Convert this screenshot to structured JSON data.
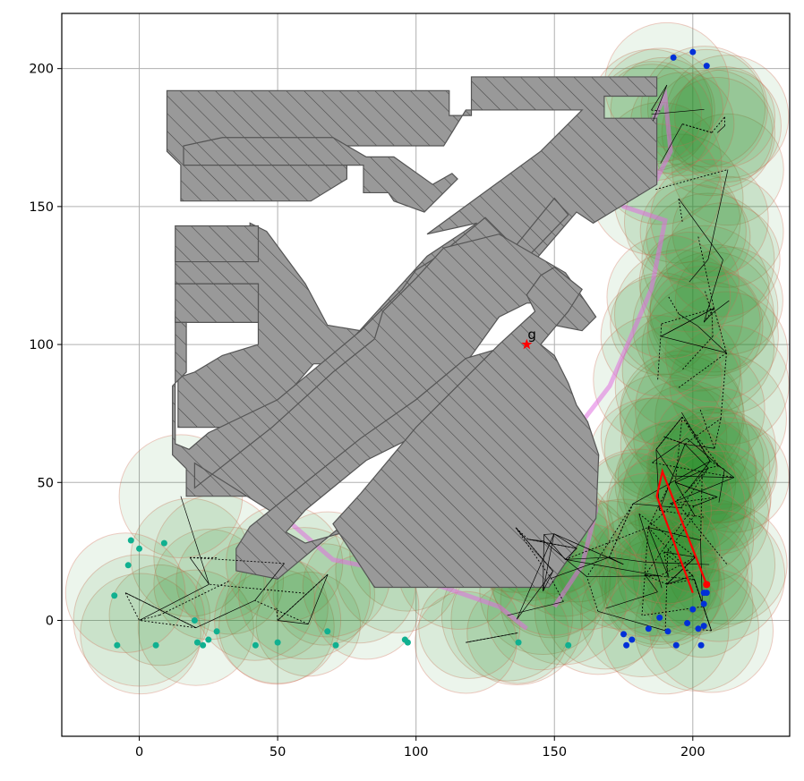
{
  "chart_data": {
    "type": "scatter",
    "title": "",
    "xlabel": "",
    "ylabel": "",
    "xlim": [
      -28,
      235
    ],
    "ylim": [
      -42,
      220
    ],
    "x_ticks": [
      0,
      50,
      100,
      150,
      200
    ],
    "y_ticks": [
      0,
      50,
      100,
      150,
      200
    ],
    "x_tick_labels": [
      "0",
      "50",
      "100",
      "150",
      "200"
    ],
    "y_tick_labels": [
      "0",
      "50",
      "100",
      "150",
      "200"
    ],
    "grid": true,
    "legend": "none",
    "colors": {
      "obstacle_fill": "#999999",
      "obstacle_edge": "#555555",
      "fov_fill": "#2e8b2e",
      "fov_edge": "#d4705a",
      "magenta_fill": "#e070e0",
      "goal": "#ff0000",
      "path": "#ff0000",
      "edge_line": "#000000"
    },
    "goal": {
      "x": 140,
      "y": 100,
      "label": "g"
    },
    "obstacles": [
      {
        "name": "top-bar",
        "points": [
          [
            10,
            192
          ],
          [
            112,
            192
          ],
          [
            112,
            183
          ],
          [
            120,
            183
          ],
          [
            120,
            197
          ],
          [
            187,
            197
          ],
          [
            187,
            190
          ],
          [
            168,
            190
          ],
          [
            168,
            182
          ],
          [
            187,
            182
          ],
          [
            187,
            158
          ],
          [
            164,
            144
          ],
          [
            158,
            148
          ],
          [
            110,
            92
          ],
          [
            104,
            95
          ],
          [
            98,
            89
          ],
          [
            150,
            153
          ],
          [
            155,
            147
          ],
          [
            103,
            93
          ],
          [
            90,
            88
          ],
          [
            80,
            105
          ],
          [
            68,
            107
          ],
          [
            60,
            122
          ],
          [
            46,
            141
          ],
          [
            40,
            144
          ],
          [
            40,
            134
          ],
          [
            13,
            134
          ],
          [
            13,
            122
          ],
          [
            43,
            122
          ],
          [
            43,
            112
          ],
          [
            13,
            112
          ],
          [
            13,
            108
          ],
          [
            43,
            108
          ],
          [
            43,
            100
          ],
          [
            30,
            96
          ],
          [
            20,
            90
          ],
          [
            14,
            88
          ],
          [
            14,
            70
          ],
          [
            43,
            70
          ],
          [
            63,
            93
          ],
          [
            70,
            93
          ],
          [
            76,
            101
          ],
          [
            104,
            132
          ],
          [
            122,
            144
          ],
          [
            104,
            140
          ],
          [
            145,
            170
          ],
          [
            150,
            175
          ],
          [
            160,
            185
          ],
          [
            118,
            185
          ],
          [
            110,
            172
          ],
          [
            75,
            172
          ],
          [
            75,
            160
          ],
          [
            62,
            152
          ],
          [
            15,
            152
          ],
          [
            15,
            165
          ],
          [
            10,
            170
          ]
        ]
      },
      {
        "name": "upper-block",
        "points": [
          [
            16,
            165
          ],
          [
            81,
            165
          ],
          [
            81,
            155
          ],
          [
            90,
            155
          ],
          [
            92,
            152
          ],
          [
            103,
            148
          ],
          [
            115,
            160
          ],
          [
            113,
            162
          ],
          [
            106,
            158
          ],
          [
            92,
            168
          ],
          [
            82,
            168
          ],
          [
            70,
            175
          ],
          [
            30,
            175
          ],
          [
            16,
            172
          ]
        ]
      },
      {
        "name": "left-bar",
        "points": [
          [
            13,
            143
          ],
          [
            13,
            130
          ],
          [
            43,
            130
          ],
          [
            43,
            143
          ]
        ]
      },
      {
        "name": "left-bar-2",
        "points": [
          [
            13,
            122
          ],
          [
            13,
            108
          ],
          [
            43,
            108
          ],
          [
            43,
            122
          ]
        ]
      },
      {
        "name": "left-diagonal",
        "points": [
          [
            13,
            108
          ],
          [
            17,
            108
          ],
          [
            17,
            90
          ],
          [
            12,
            85
          ],
          [
            12,
            60
          ],
          [
            17,
            55
          ],
          [
            17,
            45
          ],
          [
            60,
            45
          ],
          [
            90,
            78
          ],
          [
            100,
            90
          ],
          [
            108,
            88
          ],
          [
            130,
            110
          ],
          [
            143,
            128
          ],
          [
            125,
            146
          ],
          [
            108,
            132
          ],
          [
            100,
            127
          ],
          [
            95,
            120
          ],
          [
            80,
            105
          ],
          [
            50,
            80
          ],
          [
            25,
            68
          ],
          [
            18,
            62
          ],
          [
            13,
            64
          ]
        ]
      },
      {
        "name": "center-diagonal",
        "points": [
          [
            20,
            57
          ],
          [
            50,
            38
          ],
          [
            95,
            72
          ],
          [
            120,
            96
          ],
          [
            130,
            110
          ],
          [
            140,
            115
          ],
          [
            152,
            115
          ],
          [
            145,
            108
          ],
          [
            160,
            105
          ],
          [
            165,
            110
          ],
          [
            154,
            126
          ],
          [
            130,
            140
          ],
          [
            110,
            135
          ],
          [
            100,
            124
          ],
          [
            88,
            112
          ],
          [
            85,
            102
          ],
          [
            70,
            90
          ],
          [
            48,
            70
          ],
          [
            20,
            48
          ]
        ]
      },
      {
        "name": "middle-diagonal",
        "points": [
          [
            35,
            18
          ],
          [
            50,
            15
          ],
          [
            80,
            40
          ],
          [
            128,
            75
          ],
          [
            128,
            70
          ],
          [
            105,
            52
          ],
          [
            85,
            35
          ],
          [
            60,
            28
          ],
          [
            53,
            32
          ],
          [
            60,
            40
          ],
          [
            82,
            58
          ],
          [
            98,
            66
          ],
          [
            108,
            70
          ],
          [
            130,
            90
          ],
          [
            140,
            92
          ],
          [
            135,
            100
          ],
          [
            118,
            95
          ],
          [
            100,
            80
          ],
          [
            80,
            66
          ],
          [
            55,
            46
          ],
          [
            40,
            34
          ],
          [
            35,
            26
          ]
        ]
      },
      {
        "name": "right-diagonal",
        "points": [
          [
            85,
            12
          ],
          [
            148,
            12
          ],
          [
            165,
            37
          ],
          [
            166,
            60
          ],
          [
            162,
            72
          ],
          [
            158,
            78
          ],
          [
            155,
            86
          ],
          [
            150,
            96
          ],
          [
            145,
            100
          ],
          [
            155,
            112
          ],
          [
            160,
            120
          ],
          [
            150,
            128
          ],
          [
            145,
            125
          ],
          [
            140,
            118
          ],
          [
            143,
            112
          ],
          [
            130,
            100
          ],
          [
            126,
            96
          ],
          [
            120,
            90
          ],
          [
            112,
            82
          ],
          [
            100,
            70
          ],
          [
            90,
            58
          ],
          [
            80,
            46
          ],
          [
            70,
            35
          ]
        ]
      }
    ]
  }
}
